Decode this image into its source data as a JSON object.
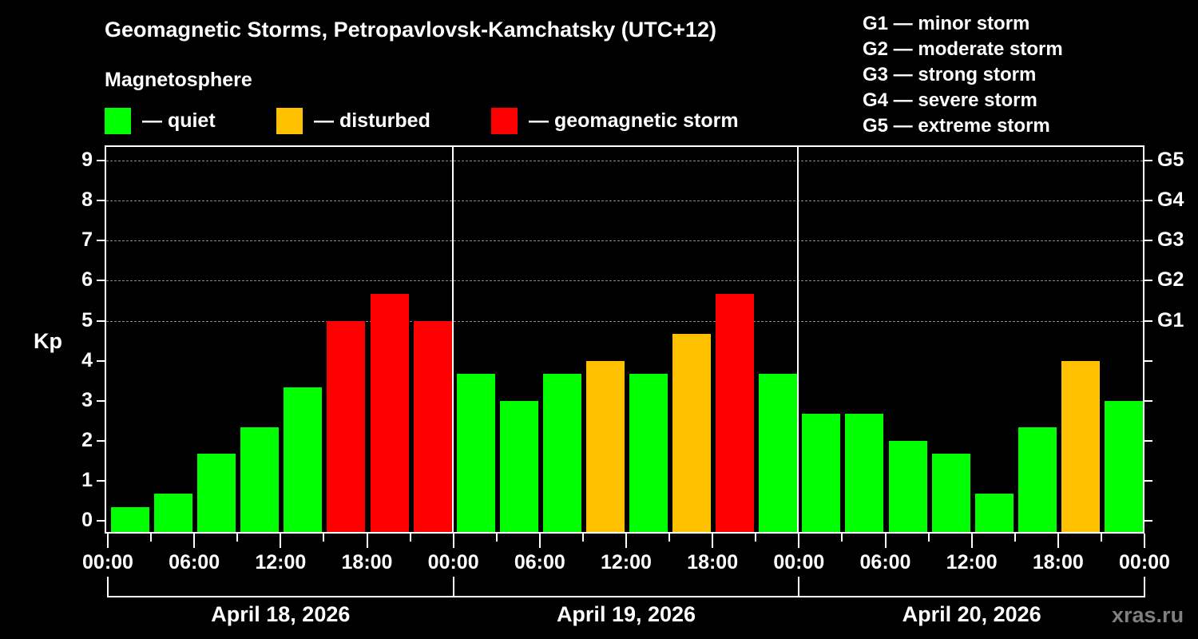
{
  "header": {
    "title": "Geomagnetic Storms, Petropavlovsk-Kamchatsky (UTC+12)",
    "subtitle": "Magnetosphere"
  },
  "legend": [
    {
      "label": "— quiet",
      "color": "#00ff00"
    },
    {
      "label": "— disturbed",
      "color": "#ffc000"
    },
    {
      "label": "— geomagnetic storm",
      "color": "#ff0000"
    }
  ],
  "storm_scale": [
    "G1 — minor storm",
    "G2 — moderate storm",
    "G3 — strong storm",
    "G4 — severe storm",
    "G5 — extreme storm"
  ],
  "watermark": "xras.ru",
  "chart_data": {
    "type": "bar",
    "title": "Geomagnetic Storms, Petropavlovsk-Kamchatsky (UTC+12)",
    "ylabel": "Kp",
    "xlabel": "",
    "ylim": [
      0,
      9
    ],
    "yticks": [
      "0",
      "1",
      "2",
      "3",
      "4",
      "5",
      "6",
      "7",
      "8",
      "9"
    ],
    "y2ticks": [
      {
        "value": 5,
        "label": "G1"
      },
      {
        "value": 6,
        "label": "G2"
      },
      {
        "value": 7,
        "label": "G3"
      },
      {
        "value": 8,
        "label": "G4"
      },
      {
        "value": 9,
        "label": "G5"
      }
    ],
    "grid": "dashed horizontal at Kp 5-9",
    "xtick_labels": [
      "00:00",
      "06:00",
      "12:00",
      "18:00",
      "00:00",
      "06:00",
      "12:00",
      "18:00",
      "00:00",
      "06:00",
      "12:00",
      "18:00",
      "00:00"
    ],
    "days": [
      "April 18, 2026",
      "April 19, 2026",
      "April 20, 2026"
    ],
    "categories": [
      "Apr18 00-03",
      "Apr18 03-06",
      "Apr18 06-09",
      "Apr18 09-12",
      "Apr18 12-15",
      "Apr18 15-18",
      "Apr18 18-21",
      "Apr18 21-24",
      "Apr19 00-03",
      "Apr19 03-06",
      "Apr19 06-09",
      "Apr19 09-12",
      "Apr19 12-15",
      "Apr19 15-18",
      "Apr19 18-21",
      "Apr19 21-24",
      "Apr20 00-03",
      "Apr20 03-06",
      "Apr20 06-09",
      "Apr20 09-12",
      "Apr20 12-15",
      "Apr20 15-18",
      "Apr20 18-21",
      "Apr20 21-24"
    ],
    "values": [
      0.33,
      0.67,
      1.67,
      2.33,
      3.33,
      5.0,
      5.67,
      5.0,
      3.67,
      3.0,
      3.67,
      4.0,
      3.67,
      4.67,
      5.67,
      3.67,
      2.67,
      2.67,
      2.0,
      1.67,
      0.67,
      2.33,
      4.0,
      3.0
    ],
    "status": [
      "quiet",
      "quiet",
      "quiet",
      "quiet",
      "quiet",
      "storm",
      "storm",
      "storm",
      "quiet",
      "quiet",
      "quiet",
      "disturbed",
      "quiet",
      "disturbed",
      "storm",
      "quiet",
      "quiet",
      "quiet",
      "quiet",
      "quiet",
      "quiet",
      "quiet",
      "disturbed",
      "quiet"
    ],
    "colors": {
      "quiet": "#00ff00",
      "disturbed": "#ffc000",
      "storm": "#ff0000"
    }
  }
}
